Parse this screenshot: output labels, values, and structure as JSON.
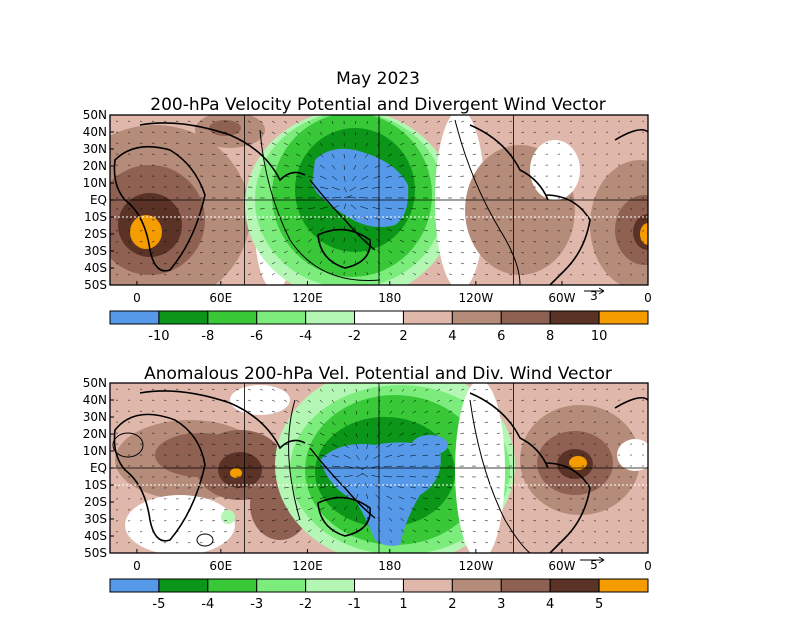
{
  "title": "May 2023",
  "colors": {
    "blue": "#5599e8",
    "dkgreen": "#0c9619",
    "green": "#38c838",
    "ltgreen": "#7ced7c",
    "paleGreen": "#b4f6b4",
    "white": "#ffffff",
    "tan1": "#e0b7ab",
    "tan2": "#b58b7a",
    "tan3": "#8e6153",
    "brown": "#5a3326",
    "orange": "#f59c00"
  },
  "panels": [
    {
      "title": "200-hPa Velocity Potential and Divergent Wind Vector",
      "lat_labels": [
        "50N",
        "40N",
        "30N",
        "20N",
        "10N",
        "EQ",
        "10S",
        "20S",
        "30S",
        "40S",
        "50S"
      ],
      "lon_labels": [
        "0",
        "60E",
        "120E",
        "180",
        "120W",
        "60W",
        "0"
      ],
      "vector_ref": "3",
      "colorbar_labels": [
        "-10",
        "-8",
        "-6",
        "-4",
        "-2",
        "2",
        "4",
        "6",
        "8",
        "10"
      ]
    },
    {
      "title": "Anomalous 200-hPa Vel. Potential and Div. Wind Vector",
      "lat_labels": [
        "50N",
        "40N",
        "30N",
        "20N",
        "10N",
        "EQ",
        "10S",
        "20S",
        "30S",
        "40S",
        "50S"
      ],
      "lon_labels": [
        "0",
        "60E",
        "120E",
        "180",
        "120W",
        "60W",
        "0"
      ],
      "vector_ref": "5",
      "colorbar_labels": [
        "-5",
        "-4",
        "-3",
        "-2",
        "-1",
        "1",
        "2",
        "3",
        "4",
        "5"
      ]
    }
  ]
}
